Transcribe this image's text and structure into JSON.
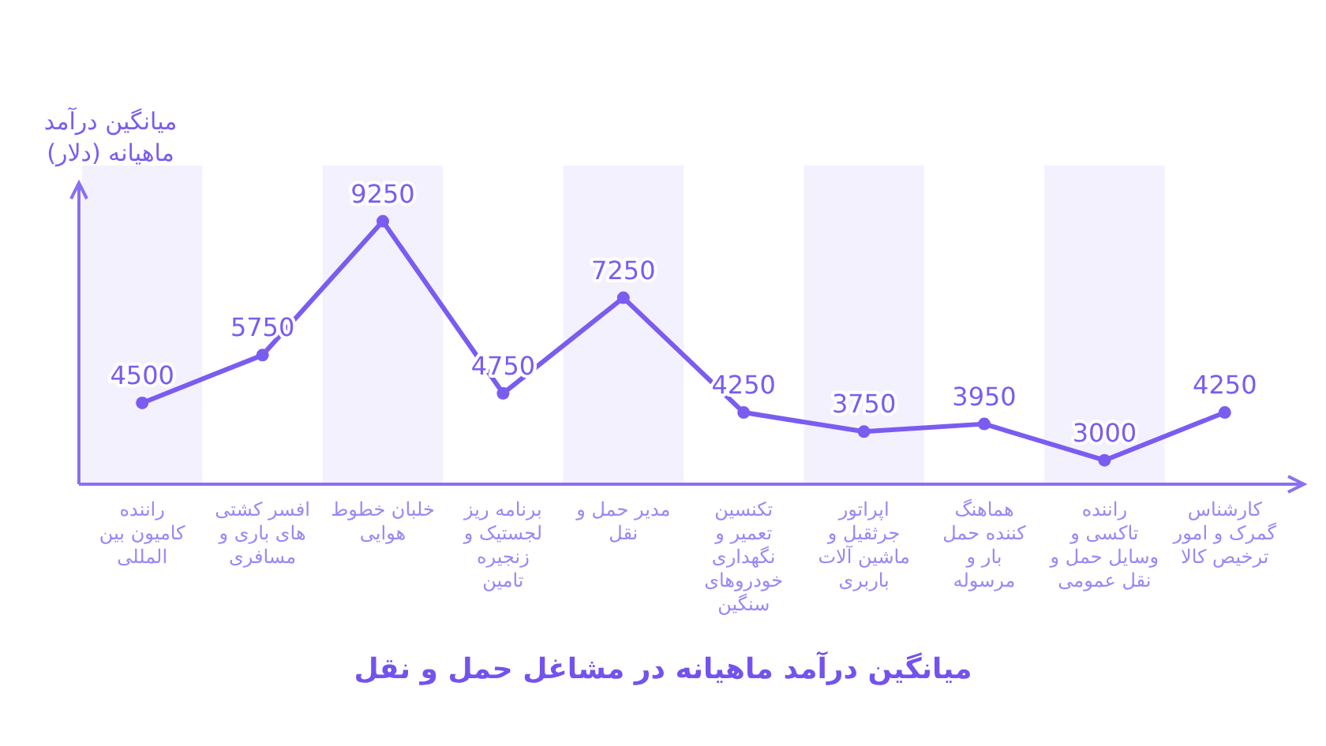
{
  "chart_data": {
    "type": "line",
    "title": "میانگین درآمد ماهیانه در مشاغل حمل و نقل",
    "ylabel": "میانگین درآمد ماهیانه (دلار)",
    "categories": [
      "راننده کامیون بین المللی",
      "افسر کشتی های باری و مسافری",
      "خلبان خطوط هوایی",
      "برنامه ریز لجستیک و زنجیره تامین",
      "مدیر حمل و نقل",
      "تکنسین تعمیر و نگهداری خودروهای سنگین",
      "اپراتور جرثقیل و ماشین آلات باربری",
      "هماهنگ کننده حمل بار و مرسوله",
      "راننده تاکسی و وسایل حمل و نقل عمومی",
      "کارشناس گمرک و امور ترخیص کالا"
    ],
    "series": [
      {
        "color": "#7b5cf0",
        "values": [
          4500,
          5750,
          9250,
          4750,
          7250,
          4250,
          3750,
          3950,
          3000,
          4250
        ]
      }
    ],
    "data_labels": true,
    "marker": "circle",
    "line_style": "solid"
  }
}
